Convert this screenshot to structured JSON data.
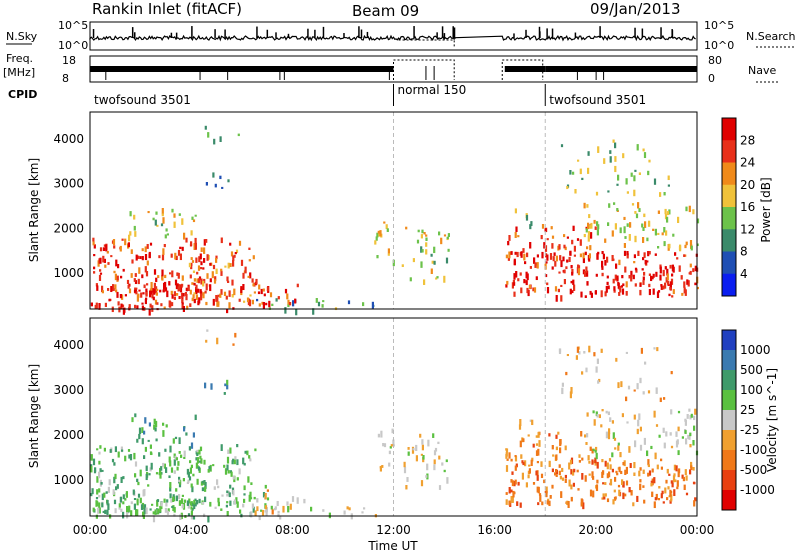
{
  "header": {
    "title": "Rankin Inlet (fitACF)",
    "beam": "Beam 09",
    "date": "09/Jan/2013"
  },
  "top_panels": {
    "nsky_label": "N.Sky",
    "nsearch_label": "N.Search",
    "nsky_ticks": [
      "10^5",
      "10^0"
    ],
    "nsearch_ticks": [
      "10^5",
      "10^0"
    ],
    "freq_label": "Freq.",
    "freq_unit": "[MHz]",
    "freq_ticks": [
      "18",
      "8"
    ],
    "nave_label": "Nave",
    "nave_ticks": [
      "80",
      "0"
    ],
    "cpid_label": "CPID",
    "cpid_segments": [
      {
        "label": "twofsound 3501",
        "start_hour": 0,
        "end_hour": 12
      },
      {
        "label": "normal 150",
        "start_hour": 12,
        "end_hour": 18
      },
      {
        "label": "twofsound 3501",
        "start_hour": 18,
        "end_hour": 24
      }
    ]
  },
  "time_axis": {
    "label": "Time UT",
    "ticks": [
      "00:00",
      "04:00",
      "08:00",
      "12:00",
      "16:00",
      "20:00",
      "00:00"
    ]
  },
  "chart_data": [
    {
      "type": "heatmap",
      "name": "power",
      "ylabel": "Slant Range [km]",
      "yticks": [
        "1000",
        "2000",
        "3000",
        "4000"
      ],
      "ylim": [
        200,
        4600
      ],
      "xlim": [
        0,
        24
      ],
      "colorbar_label": "Power [dB]",
      "colorbar_ticks": [
        "4",
        "8",
        "12",
        "16",
        "20",
        "24",
        "28"
      ],
      "colors": [
        "#0a1ef0",
        "#1f4fb4",
        "#3a8a6a",
        "#6cc24a",
        "#f0c23a",
        "#f08a1a",
        "#e8301a",
        "#e00000"
      ],
      "data_gaps_hours": [
        [
          14.5,
          16.3
        ]
      ]
    },
    {
      "type": "heatmap",
      "name": "velocity",
      "ylabel": "Slant Range [km]",
      "yticks": [
        "1000",
        "2000",
        "3000",
        "4000"
      ],
      "ylim": [
        200,
        4600
      ],
      "xlim": [
        0,
        24
      ],
      "colorbar_label": "Velocity [m s^-1]",
      "colorbar_ticks": [
        "1000",
        "500",
        "100",
        "25",
        "-25",
        "-100",
        "-500",
        "-1000"
      ],
      "colors": [
        "#2040c0",
        "#3a7ab0",
        "#3f9a6a",
        "#5ac040",
        "#c8c8c8",
        "#f0a030",
        "#f07818",
        "#e84010",
        "#e00000"
      ],
      "data_gaps_hours": [
        [
          14.5,
          16.3
        ]
      ]
    }
  ]
}
